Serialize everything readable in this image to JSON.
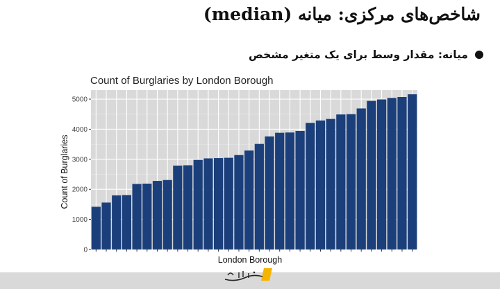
{
  "slide": {
    "title": "شاخص‌های مرکزی: میانه (median)",
    "bullet": "میانه: مقدار وسط برای یک متغیر مشخص"
  },
  "chart_data": {
    "type": "bar",
    "title": "Count of Burglaries by London Borough",
    "xlabel": "London Borough",
    "ylabel": "Count of Burglaries",
    "ylim": [
      0,
      5300
    ],
    "yticks": [
      0,
      1000,
      2000,
      3000,
      4000,
      5000
    ],
    "grid": true,
    "bar_color": "#1b3f7a",
    "panel_color": "#d9d9d9",
    "values": [
      1420,
      1560,
      1800,
      1810,
      2180,
      2190,
      2280,
      2310,
      2790,
      2800,
      2980,
      3030,
      3040,
      3050,
      3140,
      3290,
      3510,
      3760,
      3880,
      3890,
      3940,
      4210,
      4290,
      4340,
      4490,
      4500,
      4690,
      4940,
      4990,
      5040,
      5070,
      5160
    ]
  },
  "footer": {
    "logo_name": "logo-icon"
  }
}
